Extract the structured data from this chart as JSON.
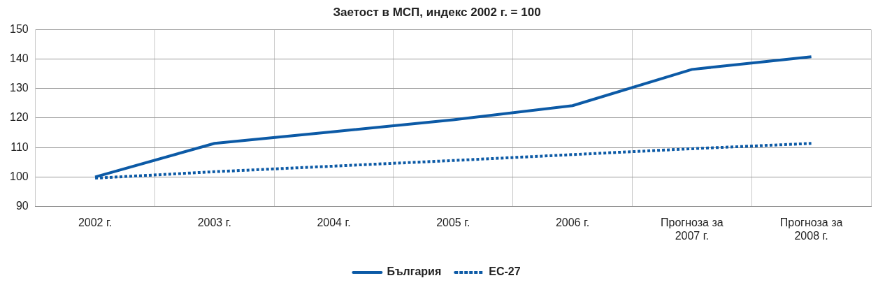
{
  "chart_data": {
    "type": "line",
    "title": "Заетост в МСП, индекс 2002 г. = 100",
    "categories": [
      "2002 г.",
      "2003 г.",
      "2004 г.",
      "2005 г.",
      "2006 г.",
      "Прогноза за 2007 г.",
      "Прогноза за 2008 г."
    ],
    "series": [
      {
        "name": "България",
        "color": "#0c5aa6",
        "line_style": "solid",
        "values": [
          100,
          111.4,
          115.4,
          119.4,
          124.2,
          136.5,
          140.8
        ]
      },
      {
        "name": "ЕС-27",
        "color": "#0c5aa6",
        "line_style": "dotted",
        "values": [
          99.6,
          101.8,
          103.7,
          105.6,
          107.6,
          109.6,
          111.4
        ]
      }
    ],
    "ylim": [
      90,
      150
    ],
    "yticks": [
      90,
      100,
      110,
      120,
      130,
      140,
      150
    ],
    "grid": true,
    "legend": "bottom",
    "marker": "none"
  }
}
